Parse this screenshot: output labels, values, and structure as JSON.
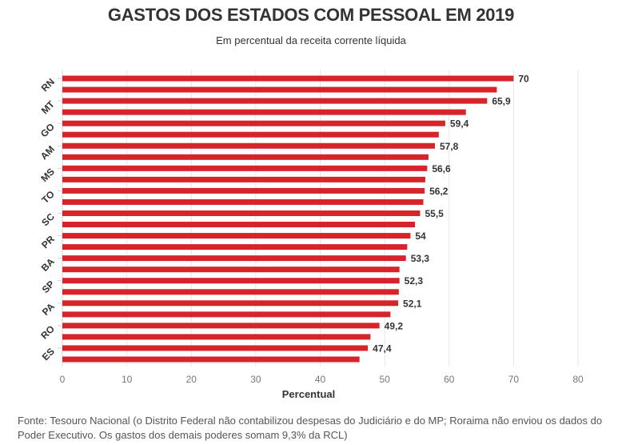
{
  "chart_data": {
    "type": "bar",
    "orientation": "horizontal",
    "title": "GASTOS DOS ESTADOS COM PESSOAL EM 2019",
    "subtitle": "Em percentual da receita corrente líquida",
    "xlabel": "Percentual",
    "ylabel": "",
    "xlim": [
      0,
      80
    ],
    "xticks": [
      "0",
      "10",
      "20",
      "30",
      "40",
      "50",
      "60",
      "70",
      "80"
    ],
    "grid": true,
    "bar_color": "#d7232a",
    "categories": [
      "RN",
      "",
      "MT",
      "",
      "GO",
      "",
      "AM",
      "",
      "MS",
      "",
      "TO",
      "",
      "SC",
      "",
      "PR",
      "",
      "BA",
      "",
      "SP",
      "",
      "PA",
      "",
      "RO",
      "",
      "ES",
      ""
    ],
    "values": [
      70,
      67.4,
      65.9,
      62.6,
      59.4,
      58.4,
      57.8,
      56.8,
      56.6,
      56.3,
      56.2,
      56.0,
      55.5,
      54.7,
      54,
      53.5,
      53.3,
      52.3,
      52.3,
      52.2,
      52.1,
      50.9,
      49.2,
      47.8,
      47.4,
      46.1
    ],
    "data_labels": [
      "70",
      "",
      "65,9",
      "",
      "59,4",
      "",
      "57,8",
      "",
      "56,6",
      "",
      "56,2",
      "",
      "55,5",
      "",
      "54",
      "",
      "53,3",
      "",
      "52,3",
      "",
      "52,1",
      "",
      "49,2",
      "",
      "47,4",
      ""
    ]
  },
  "footer": {
    "source": "Fonte: Tesouro Nacional (o Distrito Federal não contabilizou despesas do Judiciário e do MP; Roraima não enviou os dados do Poder Executivo. Os gastos dos demais poderes somam 9,3% da RCL)"
  }
}
